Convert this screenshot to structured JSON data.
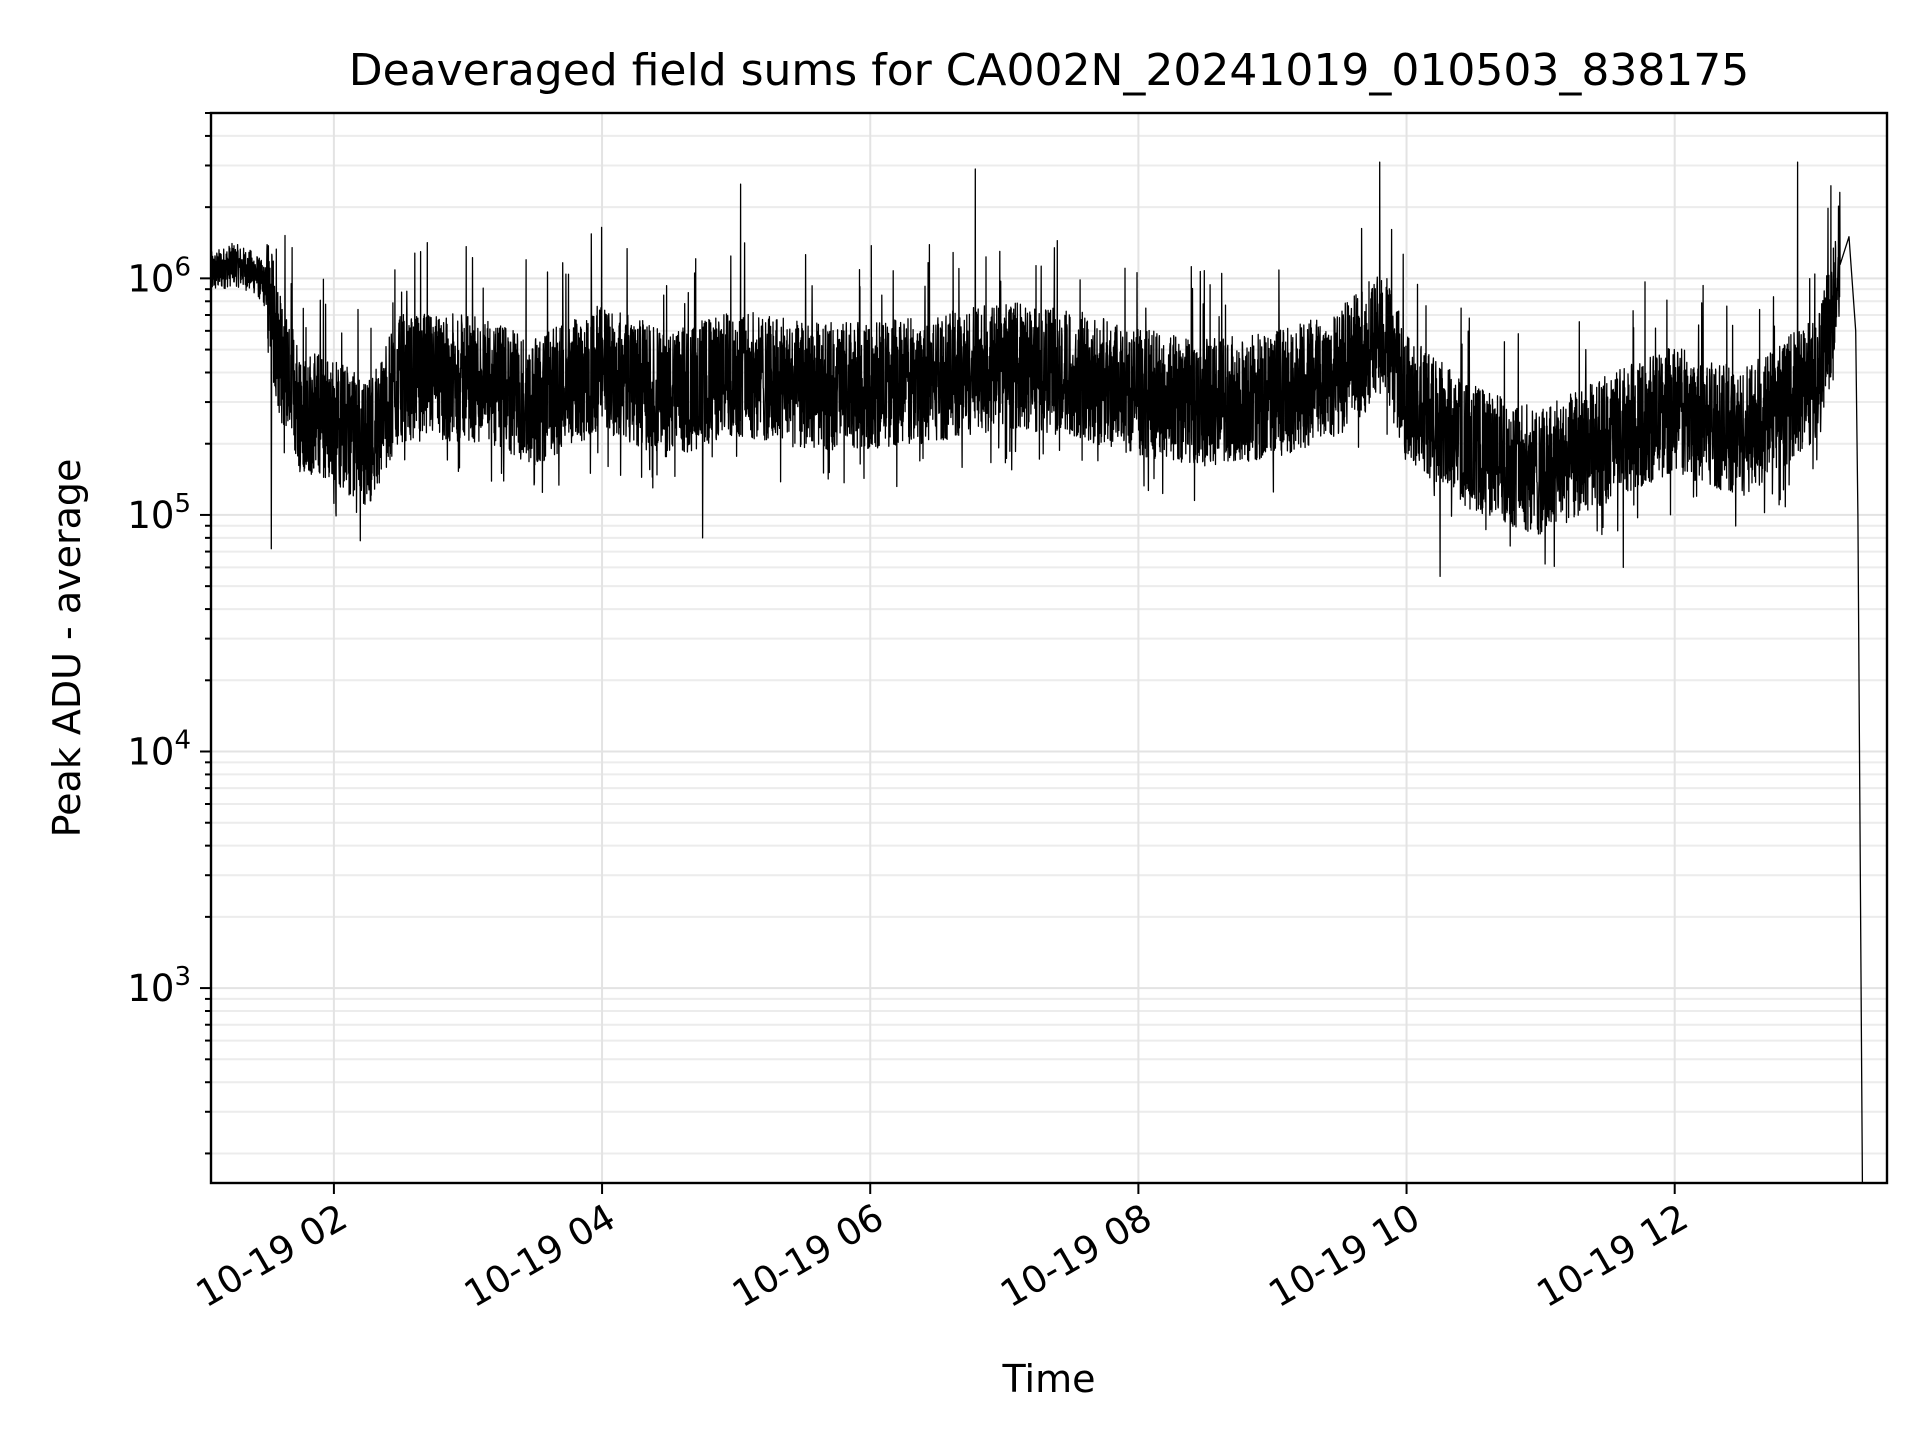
{
  "chart_data": {
    "type": "line",
    "title": "Deaveraged field sums for CA002N_20241019_010503_838175",
    "xlabel": "Time",
    "ylabel": "Peak ADU - average",
    "x_range": [
      "2024-10-19T01:05:00",
      "2024-10-19T13:35:00"
    ],
    "y_scale": "log",
    "ylim": [
      150,
      5000000
    ],
    "grid": true,
    "legend": "none",
    "line_color": "#000000",
    "x_ticks": [
      {
        "value": "2024-10-19T02:00:00",
        "label": "10-19 02"
      },
      {
        "value": "2024-10-19T04:00:00",
        "label": "10-19 04"
      },
      {
        "value": "2024-10-19T06:00:00",
        "label": "10-19 06"
      },
      {
        "value": "2024-10-19T08:00:00",
        "label": "10-19 08"
      },
      {
        "value": "2024-10-19T10:00:00",
        "label": "10-19 10"
      },
      {
        "value": "2024-10-19T12:00:00",
        "label": "10-19 12"
      }
    ],
    "y_ticks": [
      {
        "value": 1000,
        "base": "10",
        "exp": "3"
      },
      {
        "value": 10000,
        "base": "10",
        "exp": "4"
      },
      {
        "value": 100000,
        "base": "10",
        "exp": "5"
      },
      {
        "value": 1000000,
        "base": "10",
        "exp": "6"
      }
    ],
    "series": [
      {
        "x": [
          "2024-10-19T01:05:00",
          "2024-10-19T01:15:00",
          "2024-10-19T01:25:00",
          "2024-10-19T01:30:00",
          "2024-10-19T01:35:00",
          "2024-10-19T01:45:00",
          "2024-10-19T02:00:00",
          "2024-10-19T02:15:00",
          "2024-10-19T02:30:00",
          "2024-10-19T03:00:00",
          "2024-10-19T03:30:00",
          "2024-10-19T04:00:00",
          "2024-10-19T04:30:00",
          "2024-10-19T05:00:00",
          "2024-10-19T05:30:00",
          "2024-10-19T06:00:00",
          "2024-10-19T06:30:00",
          "2024-10-19T07:00:00",
          "2024-10-19T07:30:00",
          "2024-10-19T08:00:00",
          "2024-10-19T08:30:00",
          "2024-10-19T09:00:00",
          "2024-10-19T09:30:00",
          "2024-10-19T09:50:00",
          "2024-10-19T10:00:00",
          "2024-10-19T10:30:00",
          "2024-10-19T11:00:00",
          "2024-10-19T11:30:00",
          "2024-10-19T12:00:00",
          "2024-10-19T12:30:00",
          "2024-10-19T12:50:00",
          "2024-10-19T13:05:00",
          "2024-10-19T13:10:00",
          "2024-10-19T13:14:00",
          "2024-10-19T13:18:00",
          "2024-10-19T13:21:00",
          "2024-10-19T13:22:00",
          "2024-10-19T13:24:00"
        ],
        "y": [
          1050000,
          1150000,
          1050000,
          900000,
          500000,
          280000,
          250000,
          200000,
          380000,
          380000,
          300000,
          420000,
          320000,
          400000,
          350000,
          350000,
          380000,
          430000,
          400000,
          330000,
          300000,
          320000,
          400000,
          600000,
          310000,
          190000,
          150000,
          210000,
          280000,
          220000,
          300000,
          400000,
          700000,
          1300000,
          1500000,
          600000,
          100000,
          150
        ]
      }
    ],
    "spikes": [
      {
        "x": "2024-10-19T05:02:00",
        "y": 2500000
      },
      {
        "x": "2024-10-19T06:47:00",
        "y": 2900000
      },
      {
        "x": "2024-10-19T09:48:00",
        "y": 3100000
      },
      {
        "x": "2024-10-19T12:55:00",
        "y": 3100000
      },
      {
        "x": "2024-10-19T01:32:00",
        "y": 72000
      },
      {
        "x": "2024-10-19T04:45:00",
        "y": 80000
      },
      {
        "x": "2024-10-19T10:15:00",
        "y": 55000
      },
      {
        "x": "2024-10-19T11:02:00",
        "y": 62000
      },
      {
        "x": "2024-10-19T11:37:00",
        "y": 60000
      }
    ]
  }
}
